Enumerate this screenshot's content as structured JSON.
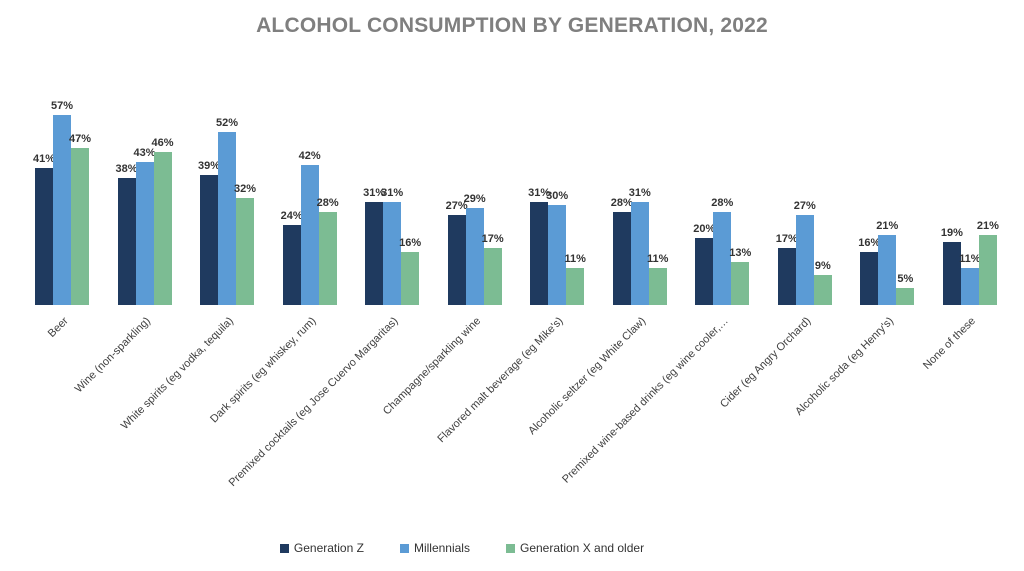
{
  "chart_data": {
    "type": "bar",
    "title": "ALCOHOL CONSUMPTION BY GENERATION, 2022",
    "title_color": "#7f7f7f",
    "value_suffix": "%",
    "xlabel": "",
    "ylabel": "",
    "ylim": [
      0,
      60
    ],
    "grid": false,
    "legend_position": "bottom",
    "categories": [
      "Beer",
      "Wine (non-sparkling)",
      "White spirits (eg vodka, tequila)",
      "Dark spirits (eg whiskey, rum)",
      "Premixed cocktails (eg Jose Cuervo Margaritas)",
      "Champagne/sparkling wine",
      "Flavored malt beverage (eg Mike's)",
      "Alcoholic seltzer (eg White Claw)",
      "Premixed wine-based drinks (eg wine cooler,…",
      "Cider (eg Angry Orchard)",
      "Alcoholic soda (eg Henry's)",
      "None of these"
    ],
    "series": [
      {
        "name": "Generation Z",
        "color": "#1f3a5f",
        "values": [
          41,
          38,
          39,
          24,
          31,
          27,
          31,
          28,
          20,
          17,
          16,
          19
        ]
      },
      {
        "name": "Millennials",
        "color": "#5b9bd5",
        "values": [
          57,
          43,
          52,
          42,
          31,
          29,
          30,
          31,
          28,
          27,
          21,
          11
        ]
      },
      {
        "name": "Generation X and older",
        "color": "#7cbc93",
        "values": [
          47,
          46,
          32,
          28,
          16,
          17,
          11,
          11,
          13,
          9,
          5,
          21
        ]
      }
    ]
  }
}
